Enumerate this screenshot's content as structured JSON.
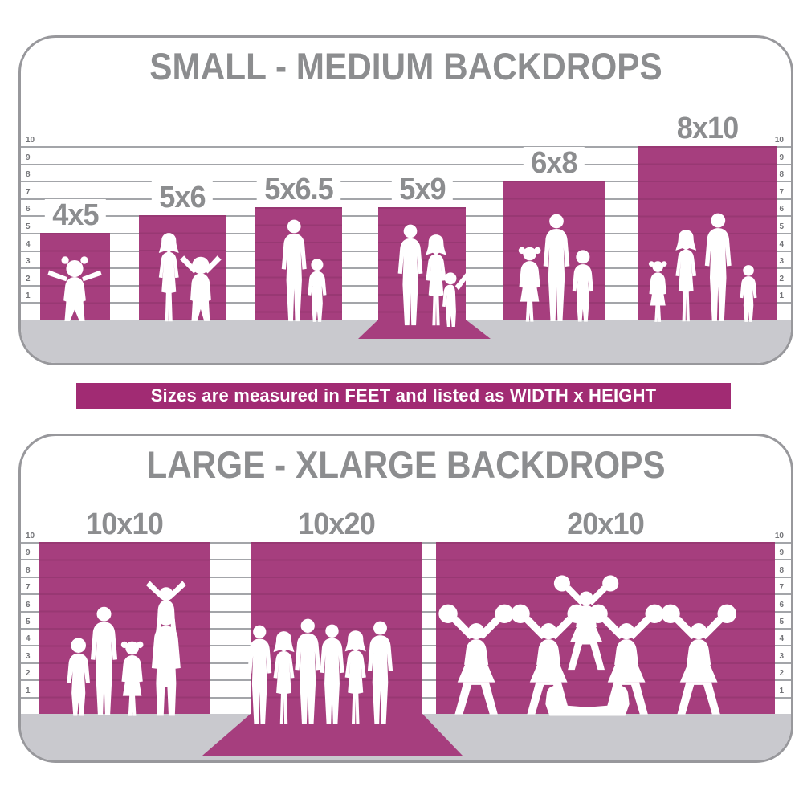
{
  "colors": {
    "bar": "#a63e7e",
    "banner": "#a12b73",
    "title": "#8c8d8f",
    "floor": "#c9c9ce",
    "grid": "#a3a5a9",
    "tick": "#737478"
  },
  "banner": {
    "text": "Sizes are measured in FEET and listed as WIDTH x HEIGHT"
  },
  "charts": [
    {
      "title": "SMALL - MEDIUM BACKDROPS",
      "ticks": [
        "10",
        "9",
        "8",
        "7",
        "6",
        "5",
        "4",
        "3",
        "2",
        "1"
      ],
      "bars": [
        {
          "label": "4x5",
          "width_ft": 4,
          "height_ft": 5,
          "wall_ft": 5,
          "figures": [
            {
              "type": "toddler-girl",
              "cx": 67,
              "h": 86
            }
          ]
        },
        {
          "label": "5x6",
          "width_ft": 5,
          "height_ft": 6,
          "wall_ft": 6,
          "figures": [
            {
              "type": "woman",
              "cx": 184,
              "h": 113
            },
            {
              "type": "toddler-cheer",
              "cx": 224,
              "h": 93
            }
          ]
        },
        {
          "label": "5x6.5",
          "width_ft": 5,
          "height_ft": 6.5,
          "wall_ft": 6.5,
          "figures": [
            {
              "type": "man",
              "cx": 340,
              "h": 129
            },
            {
              "type": "boy",
              "cx": 369,
              "h": 81
            }
          ]
        },
        {
          "label": "5x9",
          "width_ft": 5,
          "height_ft": 9,
          "wall_ft": 6.5,
          "sweep": {
            "extL": 25,
            "extR": 31,
            "h": 24
          },
          "figures": [
            {
              "type": "man",
              "cx": 485,
              "h": 128,
              "dy": 5
            },
            {
              "type": "woman",
              "cx": 517,
              "h": 116,
              "dy": 5
            },
            {
              "type": "child-wave",
              "cx": 538,
              "h": 74,
              "dy": 5
            }
          ]
        },
        {
          "label": "6x8",
          "width_ft": 6,
          "height_ft": 8,
          "wall_ft": 8,
          "figures": [
            {
              "type": "girl",
              "cx": 634,
              "h": 97
            },
            {
              "type": "man",
              "cx": 667,
              "h": 136
            },
            {
              "type": "boy",
              "cx": 700,
              "h": 92
            }
          ]
        },
        {
          "label": "8x10",
          "width_ft": 8,
          "height_ft": 10,
          "wall_ft": 10,
          "figures": [
            {
              "type": "girl",
              "cx": 793,
              "h": 79
            },
            {
              "type": "woman",
              "cx": 828,
              "h": 117
            },
            {
              "type": "man",
              "cx": 868,
              "h": 137
            },
            {
              "type": "boy",
              "cx": 906,
              "h": 73
            }
          ]
        }
      ]
    },
    {
      "title": "LARGE - XLARGE BACKDROPS",
      "ticks": [
        "10",
        "9",
        "8",
        "7",
        "6",
        "5",
        "4",
        "3",
        "2",
        "1"
      ],
      "bars": [
        {
          "label": "10x10",
          "width_ft": 10,
          "height_ft": 10,
          "wall_ft": 10,
          "figures": [
            {
              "type": "boy",
              "cx": 72,
              "h": 100
            },
            {
              "type": "man",
              "cx": 103,
              "h": 138
            },
            {
              "type": "girl",
              "cx": 139,
              "h": 97
            },
            {
              "type": "shoulder-pair",
              "cx": 181,
              "h": 172
            }
          ]
        },
        {
          "label": "10x20",
          "width_ft": 10,
          "height_ft": 20,
          "wall_ft": 10,
          "sweep": {
            "extL": 60,
            "extR": 50,
            "h": 52
          },
          "figures": [
            {
              "type": "man",
              "cx": 297,
              "h": 125,
              "dy": 10
            },
            {
              "type": "woman",
              "cx": 327,
              "h": 118,
              "dy": 10
            },
            {
              "type": "man",
              "cx": 357,
              "h": 133,
              "dy": 10
            },
            {
              "type": "man",
              "cx": 387,
              "h": 126,
              "dy": 10
            },
            {
              "type": "woman",
              "cx": 417,
              "h": 119,
              "dy": 10
            },
            {
              "type": "man",
              "cx": 447,
              "h": 130,
              "dy": 10
            }
          ]
        },
        {
          "label": "20x10",
          "width_ft": 20,
          "height_ft": 10,
          "wall_ft": 10,
          "figures": [
            {
              "type": "cheer",
              "cx": 567,
              "h": 142
            },
            {
              "type": "cheer",
              "cx": 657,
              "h": 142
            },
            {
              "type": "cheer",
              "cx": 704,
              "h": 122,
              "dy": -56
            },
            {
              "type": "cheer",
              "cx": 754,
              "h": 142
            },
            {
              "type": "cheer",
              "cx": 844,
              "h": 142
            },
            {
              "type": "kneel",
              "cx": 684,
              "h": 58
            },
            {
              "type": "kneel",
              "cx": 726,
              "h": 58,
              "flip": true
            }
          ]
        }
      ]
    }
  ],
  "chart_data": [
    {
      "type": "bar",
      "title": "SMALL - MEDIUM BACKDROPS",
      "categories": [
        "4x5",
        "5x6",
        "5x6.5",
        "5x9",
        "6x8",
        "8x10"
      ],
      "series": [
        {
          "name": "width_ft",
          "values": [
            4,
            5,
            5,
            5,
            6,
            8
          ]
        },
        {
          "name": "height_ft",
          "values": [
            5,
            6,
            6.5,
            9,
            8,
            10
          ]
        },
        {
          "name": "wall_height_shown_ft",
          "values": [
            5,
            6,
            6.5,
            6.5,
            8,
            10
          ]
        }
      ],
      "ylabel": "feet",
      "ylim": [
        0,
        10
      ],
      "grid": true,
      "note": "5x9 drawn with extra length sweeping onto the floor"
    },
    {
      "type": "bar",
      "title": "LARGE - XLARGE BACKDROPS",
      "categories": [
        "10x10",
        "10x20",
        "20x10"
      ],
      "series": [
        {
          "name": "width_ft",
          "values": [
            10,
            10,
            20
          ]
        },
        {
          "name": "height_ft",
          "values": [
            10,
            20,
            10
          ]
        },
        {
          "name": "wall_height_shown_ft",
          "values": [
            10,
            10,
            10
          ]
        }
      ],
      "ylabel": "feet",
      "ylim": [
        0,
        10
      ],
      "grid": true,
      "note": "10x20 drawn with extra length sweeping onto the floor"
    }
  ]
}
